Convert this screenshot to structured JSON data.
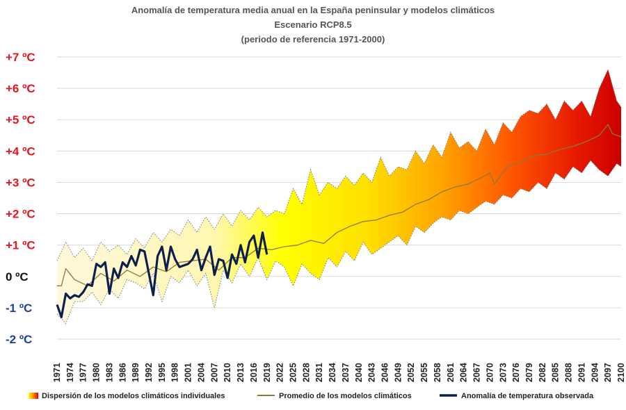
{
  "chart_data": {
    "type": "line",
    "title_lines": [
      "Anomalía de temperatura media anual en la España peninsular y modelos climáticos",
      "Escenario RCP8.5",
      "(periodo de referencia 1971-2000)"
    ],
    "y_ticks": [
      {
        "value": 7,
        "label": "+7 ºC",
        "color": "#e8141e"
      },
      {
        "value": 6,
        "label": "+6 ºC",
        "color": "#e8141e"
      },
      {
        "value": 5,
        "label": "+5 ºC",
        "color": "#e8141e"
      },
      {
        "value": 4,
        "label": "+4 ºC",
        "color": "#e8141e"
      },
      {
        "value": 3,
        "label": "+3 ºC",
        "color": "#e8141e"
      },
      {
        "value": 2,
        "label": "+2 ºC",
        "color": "#e8141e"
      },
      {
        "value": 1,
        "label": "+1 ºC",
        "color": "#e8141e"
      },
      {
        "value": 0,
        "label": "0 ºC",
        "color": "#111111"
      },
      {
        "value": -1,
        "label": "-1 ºC",
        "color": "#1f3f9e"
      },
      {
        "value": -2,
        "label": "-2 ºC",
        "color": "#1f3f9e"
      }
    ],
    "ylim": [
      -2,
      7
    ],
    "xlim": [
      1971,
      2100
    ],
    "x_tick_labels": [
      "1971",
      "1974",
      "1977",
      "1980",
      "1983",
      "1986",
      "1989",
      "1992",
      "1995",
      "1998",
      "2001",
      "2004",
      "2007",
      "2010",
      "2013",
      "2016",
      "2019",
      "2022",
      "2025",
      "2028",
      "2031",
      "2034",
      "2037",
      "2040",
      "2043",
      "2046",
      "2049",
      "2052",
      "2055",
      "2058",
      "2061",
      "2064",
      "2067",
      "2070",
      "2073",
      "2076",
      "2079",
      "2082",
      "2085",
      "2088",
      "2091",
      "2094",
      "2097",
      "2100"
    ],
    "grid": true,
    "legend": {
      "placement": "bottom",
      "items": [
        {
          "label": "Dispersión de los modelos climáticos individuales",
          "kind": "gradient"
        },
        {
          "label": "Promedio de los modelos climáticos",
          "kind": "line",
          "color": "#8a7a3a"
        },
        {
          "label": "Anomalía de temperatura observada",
          "kind": "line",
          "color": "#0d1f4f"
        }
      ]
    },
    "series": [
      {
        "name": "Promedio de los modelos climáticos",
        "color": "#8a7a3a",
        "x": [
          1971,
          1972,
          1973,
          1975,
          1978,
          1981,
          1984,
          1987,
          1990,
          1993,
          1996,
          1999,
          2002,
          2005,
          2008,
          2011,
          2014,
          2017,
          2020,
          2023,
          2026,
          2029,
          2032,
          2035,
          2038,
          2041,
          2044,
          2047,
          2050,
          2053,
          2056,
          2059,
          2062,
          2065,
          2068,
          2070,
          2071,
          2074,
          2077,
          2080,
          2083,
          2086,
          2089,
          2092,
          2095,
          2097,
          2098,
          2100
        ],
        "values": [
          -0.3,
          -0.3,
          0.25,
          -0.1,
          -0.3,
          0.1,
          -0.15,
          0.2,
          0.0,
          0.3,
          0.15,
          0.45,
          0.5,
          0.55,
          0.2,
          0.6,
          0.6,
          0.9,
          0.85,
          0.95,
          1.0,
          1.15,
          1.05,
          1.4,
          1.6,
          1.75,
          1.8,
          1.95,
          2.05,
          2.3,
          2.45,
          2.7,
          2.85,
          2.95,
          3.15,
          3.3,
          2.95,
          3.5,
          3.65,
          3.85,
          3.9,
          4.05,
          4.15,
          4.3,
          4.5,
          4.85,
          4.55,
          4.45
        ]
      },
      {
        "name": "Anomalía de temperatura observada",
        "color": "#0d1f4f",
        "x": [
          1971,
          1972,
          1973,
          1974,
          1975,
          1976,
          1977,
          1978,
          1979,
          1980,
          1981,
          1982,
          1983,
          1984,
          1985,
          1986,
          1987,
          1988,
          1989,
          1990,
          1991,
          1992,
          1993,
          1994,
          1995,
          1996,
          1997,
          1998,
          1999,
          2000,
          2001,
          2002,
          2003,
          2004,
          2005,
          2006,
          2007,
          2008,
          2009,
          2010,
          2011,
          2012,
          2013,
          2014,
          2015,
          2016,
          2017,
          2018,
          2019
        ],
        "values": [
          -0.9,
          -1.3,
          -0.55,
          -0.7,
          -0.6,
          -0.65,
          -0.5,
          -0.25,
          -0.3,
          0.4,
          0.3,
          0.45,
          -0.55,
          0.25,
          -0.05,
          0.45,
          0.3,
          0.65,
          0.35,
          0.85,
          0.8,
          0.1,
          -0.6,
          0.65,
          0.95,
          0.2,
          0.95,
          0.55,
          0.3,
          0.35,
          0.4,
          0.55,
          0.85,
          0.2,
          0.6,
          0.95,
          0.05,
          0.55,
          0.5,
          -0.05,
          0.7,
          0.4,
          1.0,
          0.45,
          1.1,
          1.3,
          0.6,
          1.4,
          0.7
        ]
      }
    ],
    "envelope": {
      "name": "Dispersión de los modelos climáticos individuales",
      "x": [
        1971,
        1973,
        1975,
        1977,
        1979,
        1981,
        1983,
        1985,
        1987,
        1989,
        1991,
        1993,
        1995,
        1997,
        1999,
        2001,
        2003,
        2005,
        2007,
        2009,
        2011,
        2013,
        2015,
        2017,
        2019,
        2021,
        2023,
        2025,
        2027,
        2029,
        2031,
        2033,
        2035,
        2037,
        2039,
        2041,
        2043,
        2045,
        2047,
        2049,
        2051,
        2053,
        2055,
        2057,
        2059,
        2061,
        2063,
        2065,
        2067,
        2069,
        2071,
        2073,
        2075,
        2077,
        2079,
        2081,
        2083,
        2085,
        2087,
        2089,
        2091,
        2093,
        2095,
        2097,
        2099,
        2100
      ],
      "upper": [
        0.5,
        1.1,
        0.6,
        0.9,
        0.5,
        1.1,
        0.8,
        1.0,
        0.7,
        1.2,
        0.9,
        1.4,
        1.1,
        1.5,
        1.3,
        1.8,
        1.4,
        1.9,
        1.5,
        2.0,
        1.6,
        2.1,
        1.8,
        2.2,
        1.9,
        2.1,
        2.0,
        2.8,
        2.3,
        3.4,
        2.6,
        3.0,
        2.8,
        3.2,
        2.9,
        3.3,
        3.0,
        3.8,
        3.2,
        3.5,
        3.4,
        4.0,
        3.6,
        4.2,
        3.8,
        4.6,
        4.1,
        4.3,
        4.0,
        4.7,
        4.2,
        4.9,
        4.6,
        5.1,
        5.3,
        5.2,
        5.5,
        5.0,
        5.6,
        5.3,
        5.6,
        5.1,
        6.0,
        6.6,
        5.6,
        5.4
      ],
      "lower": [
        -1.2,
        -1.5,
        -0.8,
        -0.8,
        -0.5,
        -0.9,
        -0.4,
        -0.7,
        -0.1,
        -0.2,
        -0.4,
        0.1,
        -0.8,
        0.0,
        -0.2,
        0.2,
        -0.3,
        0.1,
        -1.0,
        0.2,
        -0.2,
        0.4,
        0.0,
        0.6,
        -0.1,
        0.5,
        0.3,
        -0.3,
        0.4,
        0.1,
        -0.1,
        0.6,
        0.3,
        0.8,
        0.5,
        1.1,
        0.7,
        0.9,
        1.1,
        1.3,
        1.0,
        1.6,
        1.4,
        1.7,
        1.9,
        1.8,
        2.1,
        2.0,
        2.2,
        2.4,
        2.3,
        2.6,
        2.5,
        2.8,
        2.7,
        3.0,
        2.8,
        3.3,
        3.1,
        3.5,
        3.3,
        3.7,
        3.4,
        3.2,
        3.6,
        3.5
      ]
    }
  }
}
